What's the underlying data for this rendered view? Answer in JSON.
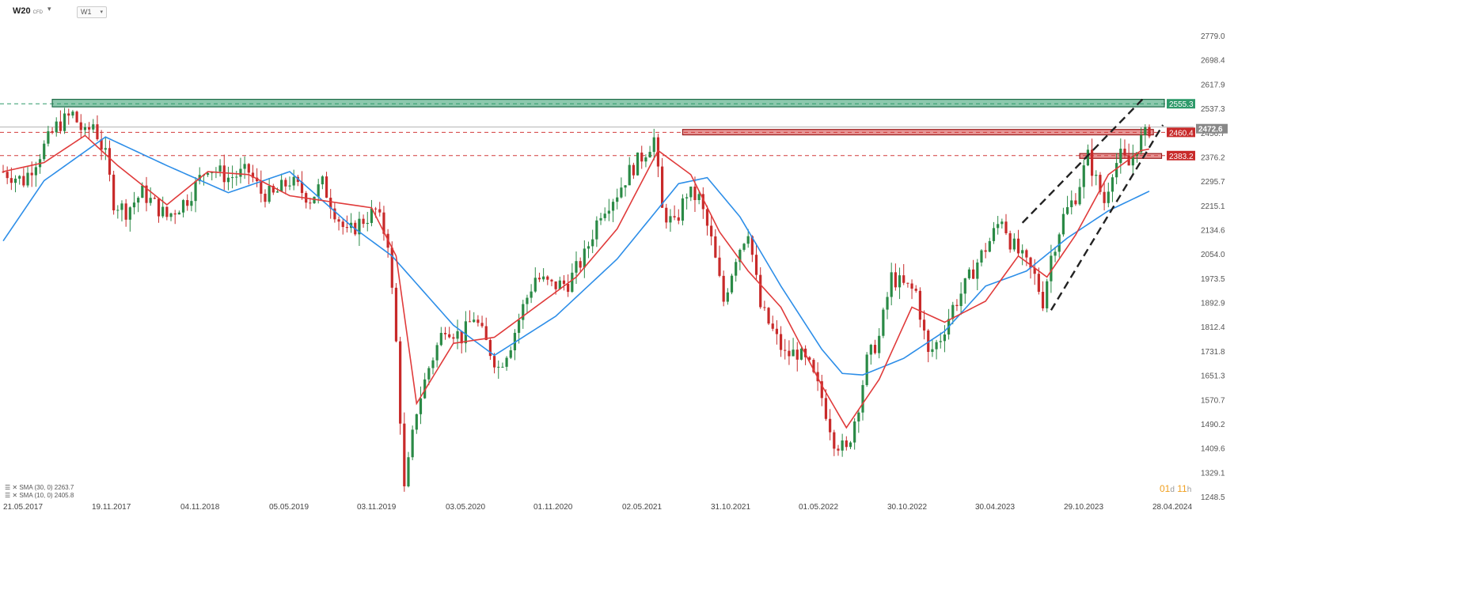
{
  "header": {
    "symbol": "W20",
    "instrument_type": "CFD",
    "timeframe": "W1"
  },
  "indicators": [
    {
      "label": "SMA (30, 0) 2263.7",
      "color": "#2d8ee8"
    },
    {
      "label": "SMA (10, 0) 2405.8",
      "color": "#e03b3b"
    }
  ],
  "countdown": {
    "days": "01",
    "d": "d",
    "hours": "11",
    "h": "h"
  },
  "colors": {
    "up": "#2a8a46",
    "down": "#c82a2a",
    "sma30": "#2d8ee8",
    "sma10": "#e03b3b",
    "resistance": "#2e9a6a",
    "support": "#d23c3c",
    "price": "#888888",
    "grid": "#eeeeee"
  },
  "chart_data": {
    "type": "candlestick",
    "y_ticks": [
      "2779.0",
      "2698.4",
      "2617.9",
      "2537.3",
      "2456.7",
      "2376.2",
      "2295.7",
      "2215.1",
      "2134.6",
      "2054.0",
      "1973.5",
      "1892.9",
      "1812.4",
      "1731.8",
      "1651.3",
      "1570.7",
      "1490.2",
      "1409.6",
      "1329.1",
      "1248.5"
    ],
    "x_ticks": [
      "21.05.2017",
      "19.11.2017",
      "04.11.2018",
      "05.05.2019",
      "03.11.2019",
      "03.05.2020",
      "01.11.2020",
      "02.05.2021",
      "31.10.2021",
      "01.05.2022",
      "30.10.2022",
      "30.04.2023",
      "29.10.2023",
      "28.04.2024"
    ],
    "price_labels": [
      {
        "value": "2555.3",
        "kind": "resistance"
      },
      {
        "value": "2472.6",
        "kind": "last"
      },
      {
        "value": "2460.4",
        "kind": "support"
      },
      {
        "value": "2383.2",
        "kind": "support"
      }
    ],
    "levels": [
      2555.3,
      2460.4,
      2383.2
    ],
    "last_price": 2472.6,
    "close_path": [
      [
        0,
        2330
      ],
      [
        5,
        2300
      ],
      [
        9,
        2390
      ],
      [
        13,
        2480
      ],
      [
        17,
        2520
      ],
      [
        20,
        2450
      ],
      [
        22,
        2490
      ],
      [
        25,
        2380
      ],
      [
        27,
        2230
      ],
      [
        30,
        2200
      ],
      [
        34,
        2260
      ],
      [
        40,
        2180
      ],
      [
        45,
        2240
      ],
      [
        50,
        2350
      ],
      [
        55,
        2310
      ],
      [
        60,
        2330
      ],
      [
        63,
        2260
      ],
      [
        66,
        2250
      ],
      [
        70,
        2300
      ],
      [
        75,
        2240
      ],
      [
        78,
        2290
      ],
      [
        81,
        2200
      ],
      [
        84,
        2120
      ],
      [
        87,
        2160
      ],
      [
        91,
        2200
      ],
      [
        94,
        2100
      ],
      [
        96,
        1760
      ],
      [
        98,
        1270
      ],
      [
        101,
        1540
      ],
      [
        104,
        1680
      ],
      [
        108,
        1820
      ],
      [
        112,
        1780
      ],
      [
        115,
        1850
      ],
      [
        118,
        1760
      ],
      [
        121,
        1680
      ],
      [
        124,
        1760
      ],
      [
        127,
        1880
      ],
      [
        130,
        1980
      ],
      [
        134,
        1950
      ],
      [
        138,
        1960
      ],
      [
        142,
        2050
      ],
      [
        146,
        2200
      ],
      [
        150,
        2260
      ],
      [
        153,
        2330
      ],
      [
        156,
        2380
      ],
      [
        159,
        2440
      ],
      [
        161,
        2200
      ],
      [
        164,
        2150
      ],
      [
        167,
        2260
      ],
      [
        170,
        2240
      ],
      [
        173,
        2100
      ],
      [
        176,
        1900
      ],
      [
        179,
        2050
      ],
      [
        182,
        2140
      ],
      [
        185,
        1880
      ],
      [
        188,
        1800
      ],
      [
        191,
        1720
      ],
      [
        194,
        1730
      ],
      [
        197,
        1680
      ],
      [
        200,
        1580
      ],
      [
        203,
        1440
      ],
      [
        206,
        1400
      ],
      [
        209,
        1560
      ],
      [
        211,
        1700
      ],
      [
        214,
        1780
      ],
      [
        217,
        1980
      ],
      [
        220,
        1950
      ],
      [
        223,
        1930
      ],
      [
        226,
        1720
      ],
      [
        229,
        1780
      ],
      [
        232,
        1880
      ],
      [
        235,
        1950
      ],
      [
        238,
        2030
      ],
      [
        241,
        2100
      ],
      [
        244,
        2180
      ],
      [
        246,
        2100
      ],
      [
        249,
        2040
      ],
      [
        252,
        1980
      ],
      [
        254,
        1900
      ],
      [
        256,
        2050
      ],
      [
        259,
        2180
      ],
      [
        262,
        2250
      ],
      [
        265,
        2380
      ],
      [
        267,
        2300
      ],
      [
        269,
        2230
      ],
      [
        271,
        2340
      ],
      [
        273,
        2380
      ],
      [
        275,
        2350
      ],
      [
        277,
        2420
      ],
      [
        279,
        2450
      ],
      [
        280,
        2473
      ]
    ],
    "sma_30_path": [
      [
        0,
        2100
      ],
      [
        10,
        2300
      ],
      [
        25,
        2445
      ],
      [
        40,
        2350
      ],
      [
        55,
        2260
      ],
      [
        70,
        2330
      ],
      [
        85,
        2150
      ],
      [
        95,
        2050
      ],
      [
        110,
        1820
      ],
      [
        120,
        1720
      ],
      [
        135,
        1850
      ],
      [
        150,
        2040
      ],
      [
        165,
        2290
      ],
      [
        172,
        2310
      ],
      [
        180,
        2180
      ],
      [
        190,
        1950
      ],
      [
        200,
        1740
      ],
      [
        205,
        1660
      ],
      [
        210,
        1655
      ],
      [
        220,
        1710
      ],
      [
        230,
        1800
      ],
      [
        240,
        1950
      ],
      [
        250,
        2000
      ],
      [
        260,
        2110
      ],
      [
        270,
        2200
      ],
      [
        280,
        2265
      ]
    ],
    "sma_10_path": [
      [
        0,
        2330
      ],
      [
        10,
        2360
      ],
      [
        20,
        2450
      ],
      [
        28,
        2350
      ],
      [
        40,
        2220
      ],
      [
        50,
        2330
      ],
      [
        60,
        2320
      ],
      [
        70,
        2250
      ],
      [
        80,
        2230
      ],
      [
        90,
        2210
      ],
      [
        96,
        2050
      ],
      [
        101,
        1560
      ],
      [
        110,
        1760
      ],
      [
        120,
        1780
      ],
      [
        130,
        1880
      ],
      [
        140,
        1980
      ],
      [
        150,
        2140
      ],
      [
        160,
        2400
      ],
      [
        168,
        2320
      ],
      [
        175,
        2130
      ],
      [
        182,
        2000
      ],
      [
        190,
        1880
      ],
      [
        200,
        1620
      ],
      [
        206,
        1480
      ],
      [
        214,
        1640
      ],
      [
        222,
        1880
      ],
      [
        230,
        1830
      ],
      [
        240,
        1900
      ],
      [
        248,
        2050
      ],
      [
        255,
        1980
      ],
      [
        262,
        2120
      ],
      [
        270,
        2320
      ],
      [
        278,
        2400
      ],
      [
        280,
        2405
      ]
    ],
    "trendlines": [
      {
        "from": [
          256,
          1870
        ],
        "to": [
          281,
          2485
        ]
      },
      {
        "from": [
          249,
          2160
        ],
        "to": [
          276,
          2570
        ]
      }
    ],
    "zones": [
      {
        "kind": "resistance",
        "from": [
          12,
          2570
        ],
        "to": [
          290,
          2545
        ]
      },
      {
        "kind": "support",
        "from": [
          166,
          2470
        ],
        "to": [
          281,
          2452
        ]
      },
      {
        "kind": "support",
        "from": [
          263,
          2390
        ],
        "to": [
          283,
          2374
        ]
      }
    ]
  }
}
